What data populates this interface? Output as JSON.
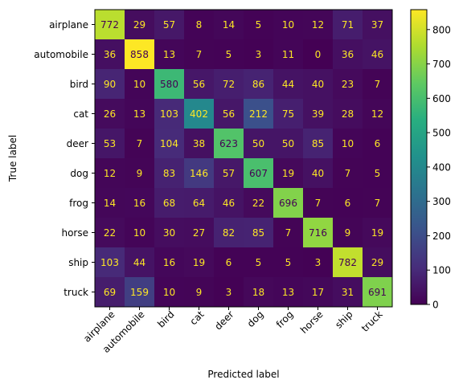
{
  "chart_data": {
    "type": "heatmap",
    "xlabel": "Predicted label",
    "ylabel": "True label",
    "x_categories": [
      "airplane",
      "automobile",
      "bird",
      "cat",
      "deer",
      "dog",
      "frog",
      "horse",
      "ship",
      "truck"
    ],
    "y_categories": [
      "airplane",
      "automobile",
      "bird",
      "cat",
      "deer",
      "dog",
      "frog",
      "horse",
      "ship",
      "truck"
    ],
    "values": [
      [
        772,
        29,
        57,
        8,
        14,
        5,
        10,
        12,
        71,
        37
      ],
      [
        36,
        858,
        13,
        7,
        5,
        3,
        11,
        0,
        36,
        46
      ],
      [
        90,
        10,
        580,
        56,
        72,
        86,
        44,
        40,
        23,
        7
      ],
      [
        26,
        13,
        103,
        402,
        56,
        212,
        75,
        39,
        28,
        12
      ],
      [
        53,
        7,
        104,
        38,
        623,
        50,
        50,
        85,
        10,
        6
      ],
      [
        12,
        9,
        83,
        146,
        57,
        607,
        19,
        40,
        7,
        5
      ],
      [
        14,
        16,
        68,
        64,
        46,
        22,
        696,
        7,
        6,
        7
      ],
      [
        22,
        10,
        30,
        27,
        82,
        85,
        7,
        716,
        9,
        19
      ],
      [
        103,
        44,
        16,
        19,
        6,
        5,
        5,
        3,
        782,
        29
      ],
      [
        69,
        159,
        10,
        9,
        3,
        18,
        13,
        17,
        31,
        691
      ]
    ],
    "colormap": "viridis",
    "color_range": [
      0,
      858
    ],
    "colorbar_ticks": [
      0,
      100,
      200,
      300,
      400,
      500,
      600,
      700,
      800
    ],
    "grid": false,
    "colors": {
      "text_on_dark": "#fde725",
      "text_on_light": "#440154"
    }
  }
}
